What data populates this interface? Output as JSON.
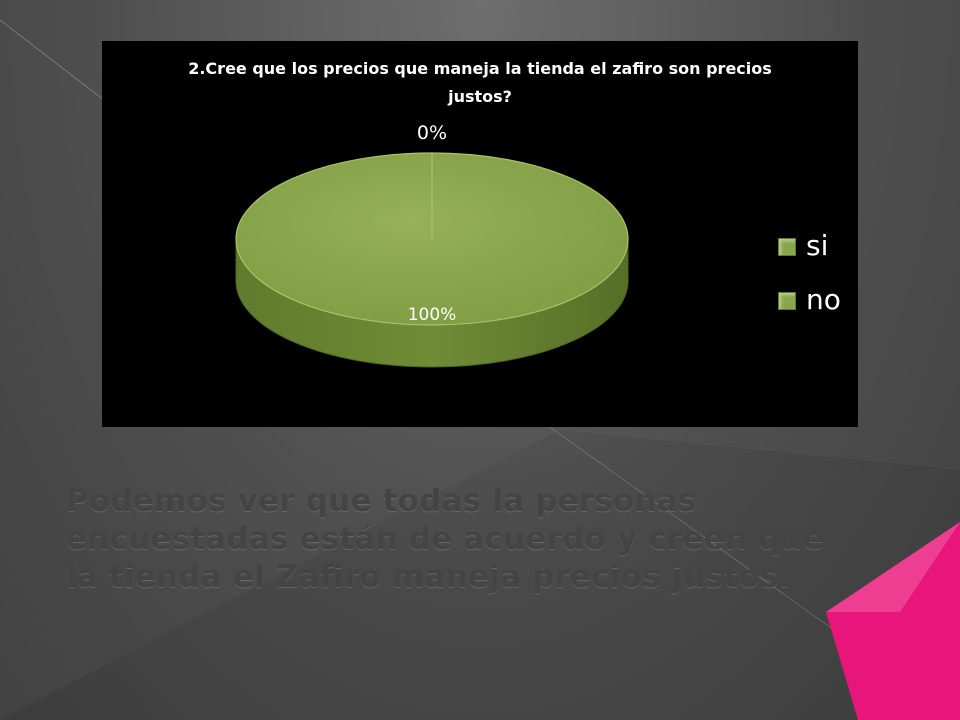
{
  "slide": {
    "summary_text": "Podemos ver que todas la personas encuestadas están de acuerdo y creen que la tienda el Zafiro maneja precios justos.",
    "accent_color": "#e8157a"
  },
  "chart_data": {
    "type": "pie",
    "title": "2.Cree que los precios que maneja la tienda el zafiro son precios justos?",
    "categories": [
      "si",
      "no"
    ],
    "values": [
      100,
      0
    ],
    "data_labels": [
      "100%",
      "0%"
    ],
    "legend": {
      "position": "right",
      "entries": [
        "si",
        "no"
      ]
    },
    "colors": [
      "#8aa64c",
      "#8aa64c"
    ],
    "style": "3d"
  }
}
